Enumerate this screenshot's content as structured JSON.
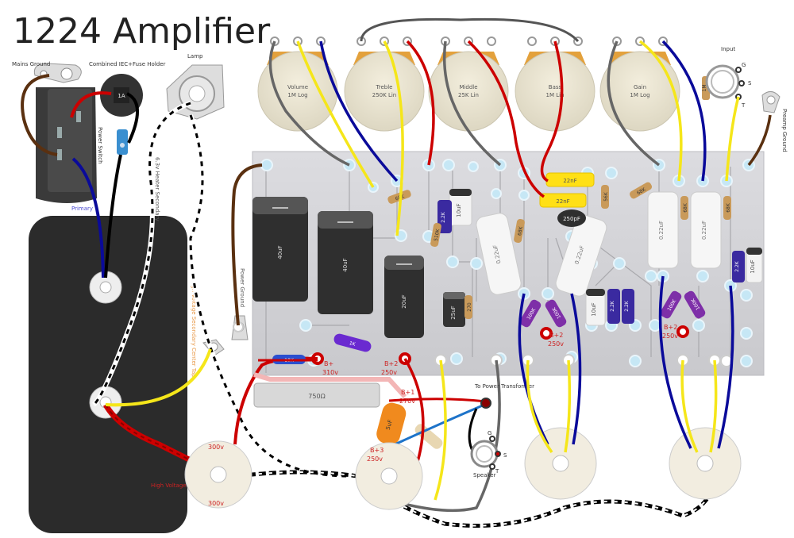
{
  "title": "1224 Amplifier",
  "labels": {
    "mains_ground": "Mains Ground",
    "iec": "Combined IEC+Fuse Holder",
    "lamp": "Lamp",
    "fuse": "1A",
    "power_switch": "Power Switch",
    "primary": "Primary",
    "heater_secondary": "6.3v Heater Secondary",
    "hv_center_tap": "High Voltage Secondary Center Tap",
    "power_ground": "Power Ground",
    "hv_secondary": "High Voltage Secondary",
    "input": "Input",
    "preamp_ground": "Preamp Ground",
    "to_power_transformer": "To Power Transformer",
    "speaker": "Speaker",
    "g": "G",
    "s": "S",
    "t": "T"
  },
  "pots": [
    {
      "name": "Volume",
      "value": "1M Log"
    },
    {
      "name": "Treble",
      "value": "250K Lin"
    },
    {
      "name": "Middle",
      "value": "25K Lin"
    },
    {
      "name": "Bass",
      "value": "1M Lin"
    },
    {
      "name": "Gain",
      "value": "1M Log"
    }
  ],
  "caps": {
    "c40a": "40uF",
    "c40b": "40uF",
    "c20": "20uF",
    "c25": "25uF",
    "c22a": "0.22uF",
    "c22b": "0.22uF",
    "c22c": "0.22uF",
    "c22d": "0.22uF",
    "c10a": "10uF",
    "c10b": "10uF",
    "c10c": "10uF",
    "c22n1": "22nF",
    "c22n2": "22nF",
    "c250p": "250pF",
    "c5u": "5uF"
  },
  "resistors": {
    "r68k_a": "68K",
    "r2k2_a": "2.2K",
    "r510k": "510K",
    "r68k_b": "68K",
    "r56k": "56K",
    "r68k_c": "68K",
    "r68k_d": "68K",
    "r68k_e": "68K",
    "r2k2_b": "2.2K",
    "r270": "270",
    "r100k_a": "100K",
    "r100k_b": "100K",
    "r2k2_c": "2.2K",
    "r2k2_d": "2.2K",
    "r100k_c": "100K",
    "r100k_d": "100K",
    "r750": "750Ω",
    "r1m": "1M",
    "r10k": "10K",
    "r1k": "1K"
  },
  "voltages": {
    "bplus": "B+",
    "bplus_v": "310v",
    "bplus2_a": "B+2",
    "bplus2_a_v": "250v",
    "bplus2_b": "B+2",
    "bplus2_b_v": "250v",
    "bplus2_c": "B+2",
    "bplus2_c_v": "250v",
    "bplus1": "B+1",
    "bplus1_v": "270v",
    "bplus3": "B+3",
    "bplus3_v": "250v",
    "v300_a": "300v",
    "v300_b": "300v"
  },
  "colors": {
    "board": "#d2d2d6",
    "wire_red": "#cc0000",
    "wire_blue": "#0a0a9a",
    "wire_yellow": "#f5e61a",
    "wire_brown": "#5a3010",
    "wire_grey": "#666666",
    "wire_black": "#000000",
    "transformer": "#2b2b2b",
    "voltage_text": "#cc2222",
    "label_orange": "#e89a4a"
  }
}
